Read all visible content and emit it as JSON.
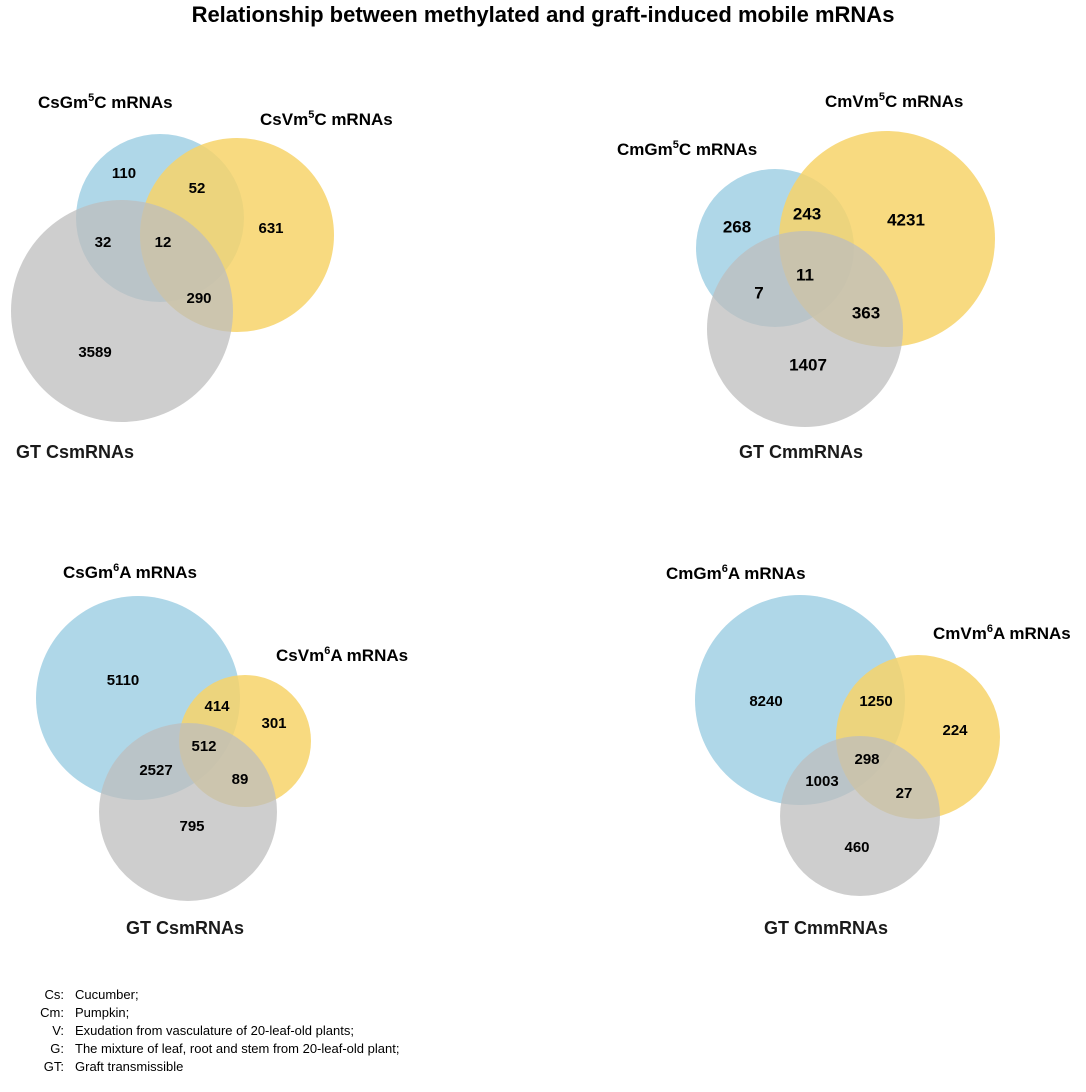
{
  "title": "Relationship between methylated and graft-induced mobile mRNAs",
  "colors": {
    "blue": "#a6d3e6",
    "yellow": "#f7d46a",
    "grey": "#bdbdbd"
  },
  "venns": [
    {
      "set_a": {
        "label": "CsGm",
        "sup": "5",
        "suffix": "C mRNAs"
      },
      "set_b": {
        "label": "CsVm",
        "sup": "5",
        "suffix": "C mRNAs"
      },
      "set_c": {
        "label": "GT CsmRNAs"
      },
      "counts": {
        "a_only": "110",
        "b_only": "631",
        "c_only": "3589",
        "ab": "52",
        "ac": "32",
        "bc": "290",
        "abc": "12"
      }
    },
    {
      "set_a": {
        "label": "CmGm",
        "sup": "5",
        "suffix": "C mRNAs"
      },
      "set_b": {
        "label": "CmVm",
        "sup": "5",
        "suffix": "C mRNAs"
      },
      "set_c": {
        "label": "GT CmmRNAs"
      },
      "counts": {
        "a_only": "268",
        "b_only": "4231",
        "c_only": "1407",
        "ab": "243",
        "ac": "7",
        "bc": "363",
        "abc": "11"
      }
    },
    {
      "set_a": {
        "label": "CsGm",
        "sup": "6",
        "suffix": "A mRNAs"
      },
      "set_b": {
        "label": "CsVm",
        "sup": "6",
        "suffix": "A mRNAs"
      },
      "set_c": {
        "label": "GT CsmRNAs"
      },
      "counts": {
        "a_only": "5110",
        "b_only": "301",
        "c_only": "795",
        "ab": "414",
        "ac": "2527",
        "bc": "89",
        "abc": "512"
      }
    },
    {
      "set_a": {
        "label": "CmGm",
        "sup": "6",
        "suffix": "A mRNAs"
      },
      "set_b": {
        "label": "CmVm",
        "sup": "6",
        "suffix": "A mRNAs"
      },
      "set_c": {
        "label": "GT CmmRNAs"
      },
      "counts": {
        "a_only": "8240",
        "b_only": "224",
        "c_only": "460",
        "ab": "1250",
        "ac": "1003",
        "bc": "27",
        "abc": "298"
      }
    }
  ],
  "legend": [
    {
      "key": "Cs:",
      "value": "Cucumber;"
    },
    {
      "key": "Cm:",
      "value": "Pumpkin;"
    },
    {
      "key": "V:",
      "value": "Exudation from vasculature of 20-leaf-old plants;"
    },
    {
      "key": "G:",
      "value": "The mixture of leaf, root and stem from 20-leaf-old plant;"
    },
    {
      "key": "GT:",
      "value": "Graft transmissible"
    }
  ]
}
